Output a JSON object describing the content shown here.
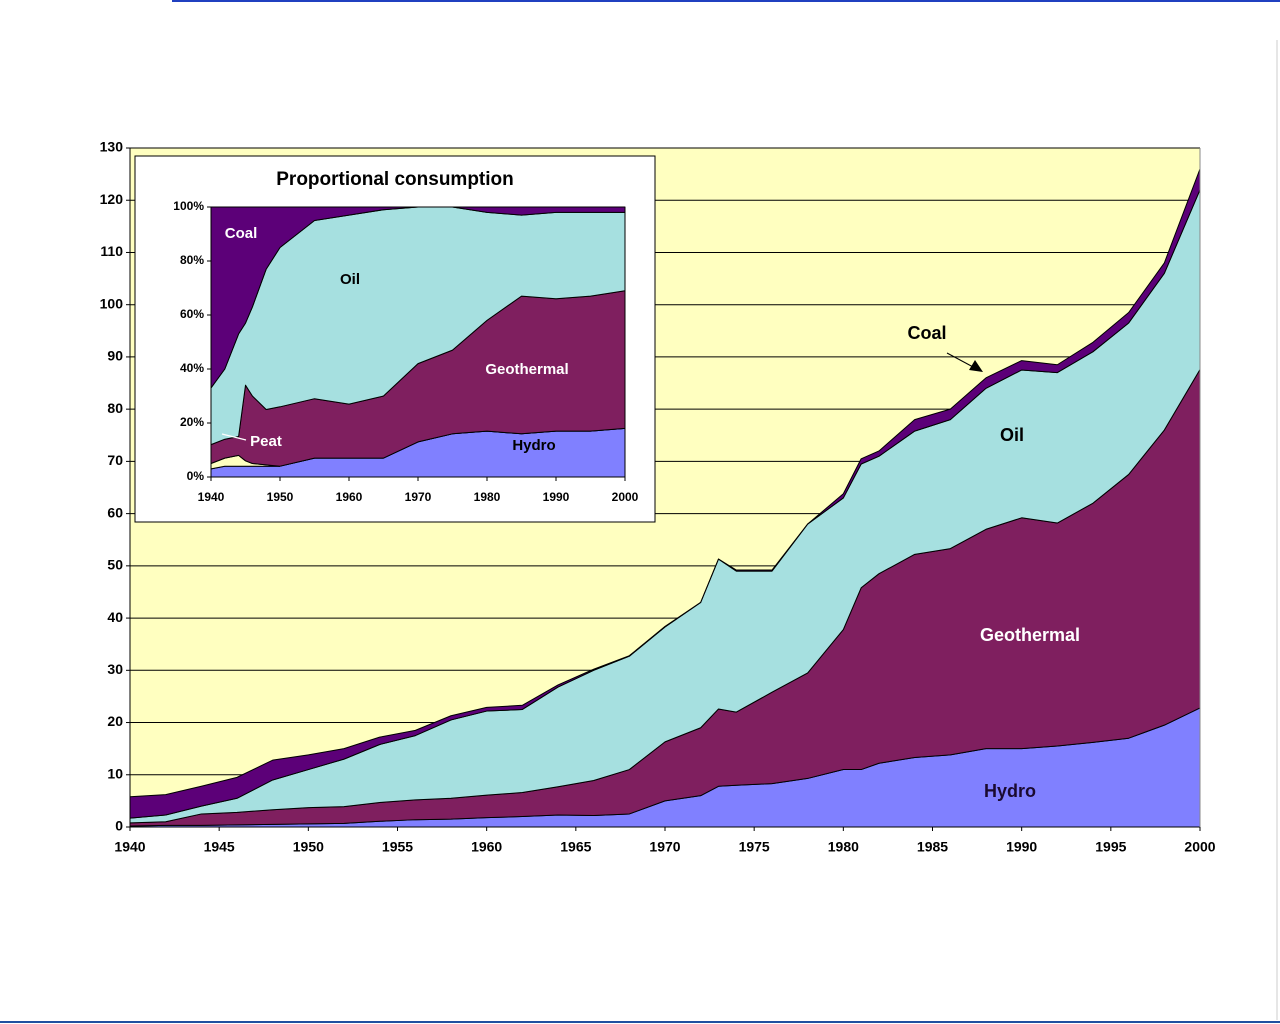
{
  "chart_data": [
    {
      "type": "area",
      "stacked": true,
      "grid": true,
      "background": "#ffffc0",
      "x": [
        1940,
        1942,
        1944,
        1946,
        1948,
        1950,
        1952,
        1954,
        1956,
        1958,
        1960,
        1962,
        1964,
        1966,
        1968,
        1970,
        1972,
        1973,
        1974,
        1976,
        1978,
        1980,
        1981,
        1982,
        1984,
        1986,
        1988,
        1990,
        1992,
        1994,
        1996,
        1998,
        2000
      ],
      "xlim": [
        1940,
        2000
      ],
      "xticks": [
        1940,
        1945,
        1950,
        1955,
        1960,
        1965,
        1970,
        1975,
        1980,
        1985,
        1990,
        1995,
        2000
      ],
      "ylim": [
        0,
        130
      ],
      "yticks": [
        0,
        10,
        20,
        30,
        40,
        50,
        60,
        70,
        80,
        90,
        100,
        110,
        120,
        130
      ],
      "series": [
        {
          "name": "Hydro",
          "color": "#8080ff",
          "values": [
            0.2,
            0.3,
            0.3,
            0.4,
            0.5,
            0.6,
            0.7,
            1.1,
            1.4,
            1.5,
            1.8,
            2.0,
            2.3,
            2.2,
            2.5,
            5.0,
            6.0,
            7.8,
            8.0,
            8.3,
            9.3,
            11.0,
            11.0,
            12.2,
            13.3,
            13.8,
            15.0,
            15.0,
            15.5,
            16.2,
            17.0,
            19.5,
            22.8
          ]
        },
        {
          "name": "Geothermal",
          "color": "#7f1f5f",
          "values": [
            0.6,
            0.7,
            2.2,
            2.4,
            2.8,
            3.1,
            3.2,
            3.6,
            3.8,
            4.0,
            4.3,
            4.6,
            5.4,
            6.7,
            8.5,
            11.3,
            13.0,
            14.8,
            14.0,
            17.5,
            20.2,
            26.8,
            34.8,
            36.3,
            38.9,
            39.5,
            42.0,
            44.2,
            42.7,
            45.8,
            50.5,
            56.5,
            64.8
          ]
        },
        {
          "name": "Oil",
          "color": "#a6e0e0",
          "values": [
            0.9,
            1.3,
            1.5,
            2.7,
            5.7,
            7.3,
            9.1,
            11.1,
            12.3,
            15.0,
            16.1,
            15.9,
            19.1,
            21.1,
            21.7,
            22.0,
            24.0,
            28.7,
            27.0,
            23.2,
            28.5,
            25.2,
            23.7,
            22.5,
            23.6,
            24.7,
            27.0,
            28.3,
            28.8,
            29.0,
            29.0,
            30.0,
            34.4
          ]
        },
        {
          "name": "Coal",
          "color": "#5c0078",
          "values": [
            4.1,
            3.9,
            3.8,
            4.0,
            3.8,
            2.8,
            2.0,
            1.4,
            1.0,
            0.8,
            0.7,
            0.8,
            0.4,
            0.2,
            0.1,
            0.1,
            0,
            0,
            0.2,
            0.2,
            0,
            0.8,
            1.0,
            1.0,
            2.2,
            2.0,
            2.0,
            1.8,
            1.5,
            1.8,
            2.0,
            2.0,
            4.0
          ]
        }
      ]
    },
    {
      "type": "area",
      "stacked": true,
      "grid": false,
      "background": "#ffffff",
      "title": "Proportional consumption",
      "x": [
        1940,
        1942,
        1944,
        1945,
        1946,
        1948,
        1950,
        1955,
        1960,
        1965,
        1970,
        1975,
        1980,
        1985,
        1990,
        1995,
        2000
      ],
      "xlim": [
        1940,
        2000
      ],
      "xticks": [
        1940,
        1950,
        1960,
        1970,
        1980,
        1990,
        2000
      ],
      "ylim": [
        0,
        100
      ],
      "yticks": [
        {
          "value": 0,
          "label": "0%"
        },
        {
          "value": 20,
          "label": "20%"
        },
        {
          "value": 40,
          "label": "40%"
        },
        {
          "value": 60,
          "label": "60%"
        },
        {
          "value": 80,
          "label": "80%"
        },
        {
          "value": 100,
          "label": "100%"
        }
      ],
      "series": [
        {
          "name": "Hydro",
          "color": "#8080ff",
          "values": [
            3,
            4,
            4,
            4,
            4,
            4,
            4,
            7,
            7,
            7,
            13,
            16,
            17,
            16,
            17,
            17,
            18
          ]
        },
        {
          "name": "Peat",
          "color": "#ffffc0",
          "values": [
            2,
            3,
            4,
            2,
            1,
            0.5,
            0,
            0,
            0,
            0,
            0,
            0,
            0,
            0,
            0,
            0,
            0
          ]
        },
        {
          "name": "Geothermal",
          "color": "#7f1f5f",
          "values": [
            7,
            7,
            7,
            28,
            25,
            20.5,
            22,
            22,
            20,
            23,
            29,
            31,
            41,
            51,
            49,
            50,
            51
          ]
        },
        {
          "name": "Oil",
          "color": "#a6e0e0",
          "values": [
            21,
            26,
            38,
            23,
            33,
            52,
            59,
            66,
            70,
            69,
            58,
            53,
            40,
            30,
            32,
            31,
            29
          ]
        },
        {
          "name": "Coal",
          "color": "#5c0078",
          "values": [
            67,
            60,
            47,
            43,
            37,
            23,
            15,
            5,
            3,
            1,
            0,
            0,
            2,
            3,
            2,
            2,
            2
          ]
        }
      ]
    }
  ]
}
